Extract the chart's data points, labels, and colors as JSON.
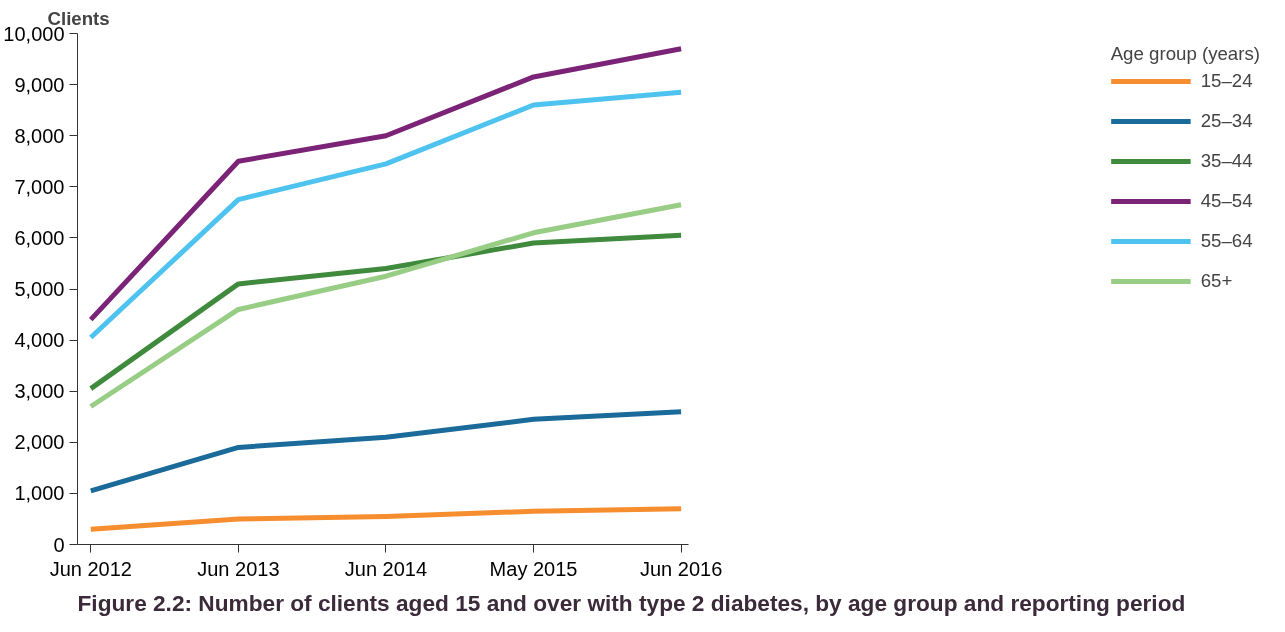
{
  "chart_data": {
    "type": "line",
    "title": "Figure 2.2: Number of clients aged 15 and over with type 2 diabetes, by age group and reporting period",
    "ylabel": "Clients",
    "legend_title": "Age group (years)",
    "categories": [
      "Jun 2012",
      "Jun 2013",
      "Jun 2014",
      "May 2015",
      "Jun 2016"
    ],
    "series": [
      {
        "name": "15–24",
        "color": "#f68d2e",
        "values": [
          300,
          500,
          550,
          650,
          700
        ]
      },
      {
        "name": "25–34",
        "color": "#1a6a9a",
        "values": [
          1050,
          1900,
          2100,
          2450,
          2600
        ]
      },
      {
        "name": "35–44",
        "color": "#3f8a3d",
        "values": [
          3050,
          5100,
          5400,
          5900,
          6050
        ]
      },
      {
        "name": "45–54",
        "color": "#7b2376",
        "values": [
          4400,
          7500,
          8000,
          9150,
          9700
        ]
      },
      {
        "name": "55–64",
        "color": "#4fc3ef",
        "values": [
          4050,
          6750,
          7450,
          8600,
          8850
        ]
      },
      {
        "name": "65+",
        "color": "#98cd85",
        "values": [
          2700,
          4600,
          5250,
          6100,
          6650
        ]
      }
    ],
    "ylim": [
      0,
      10000
    ],
    "yticks": [
      {
        "value": 0,
        "label": "0"
      },
      {
        "value": 1000,
        "label": "1,000"
      },
      {
        "value": 2000,
        "label": "2,000"
      },
      {
        "value": 3000,
        "label": "3,000"
      },
      {
        "value": 4000,
        "label": "4,000"
      },
      {
        "value": 5000,
        "label": "5,000"
      },
      {
        "value": 6000,
        "label": "6,000"
      },
      {
        "value": 7000,
        "label": "7,000"
      },
      {
        "value": 8000,
        "label": "8,000"
      },
      {
        "value": 9000,
        "label": "9,000"
      },
      {
        "value": 10000,
        "label": "10,000"
      }
    ],
    "grid": false,
    "legend": "right",
    "marker": "none",
    "line_style": "solid"
  }
}
